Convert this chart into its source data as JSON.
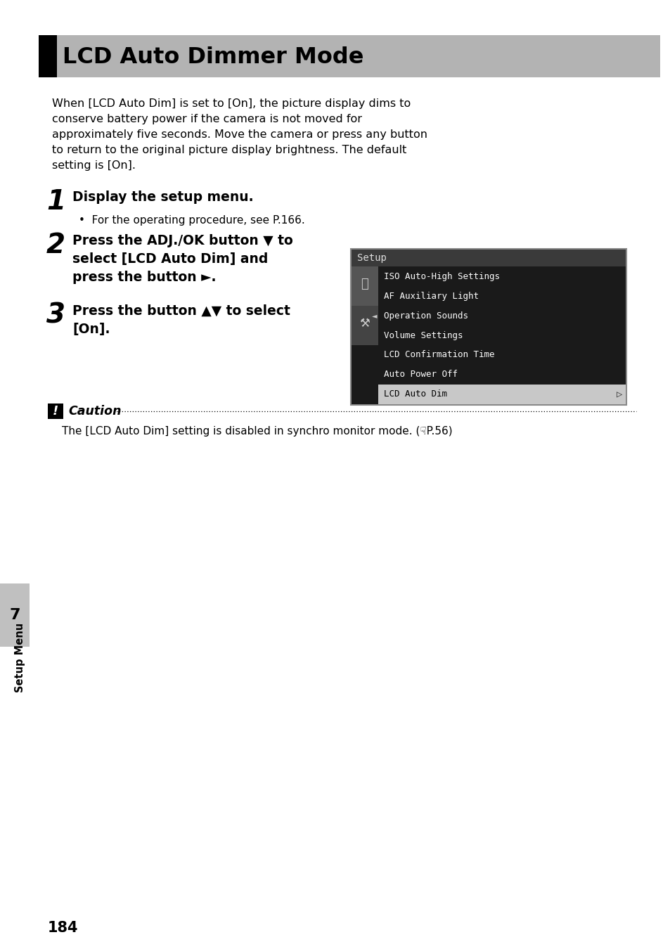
{
  "title": "LCD Auto Dimmer Mode",
  "header_bg": "#b3b3b3",
  "header_black_bar": "#000000",
  "body_text": "When [LCD Auto Dim] is set to [On], the picture display dims to\nconserve battery power if the camera is not moved for\napproximately five seconds. Move the camera or press any button\nto return to the original picture display brightness. The default\nsetting is [On].",
  "step1_num": "1",
  "step1_text": "Display the setup menu.",
  "step1_sub": "For the operating procedure, see P.166.",
  "step2_num": "2",
  "step2_line1": "Press the ADJ./OK button ▼ to",
  "step2_line2": "select [LCD Auto Dim] and",
  "step2_line3": "press the button ►.",
  "step3_num": "3",
  "step3_line1": "Press the button ▲▼ to select",
  "step3_line2": "[On].",
  "menu_title": "Setup",
  "menu_items": [
    "ISO Auto-High Settings",
    "AF Auxiliary Light",
    "Operation Sounds",
    "Volume Settings",
    "LCD Confirmation Time",
    "Auto Power Off",
    "LCD Auto Dim"
  ],
  "menu_selected_item": "LCD Auto Dim",
  "caution_title": "Caution",
  "caution_text": "The [LCD Auto Dim] setting is disabled in synchro monitor mode. (☟P.56)",
  "sidebar_number": "7",
  "sidebar_label": "Setup Menu",
  "page_number": "184",
  "bg_color": "#ffffff",
  "text_color": "#000000",
  "menu_bg": "#1a1a1a",
  "menu_title_bg": "#3a3a3a",
  "menu_text_color": "#ffffff",
  "menu_selected_bg": "#c8c8c8",
  "menu_selected_text": "#000000",
  "menu_border": "#555555",
  "sidebar_bg": "#c0c0c0"
}
